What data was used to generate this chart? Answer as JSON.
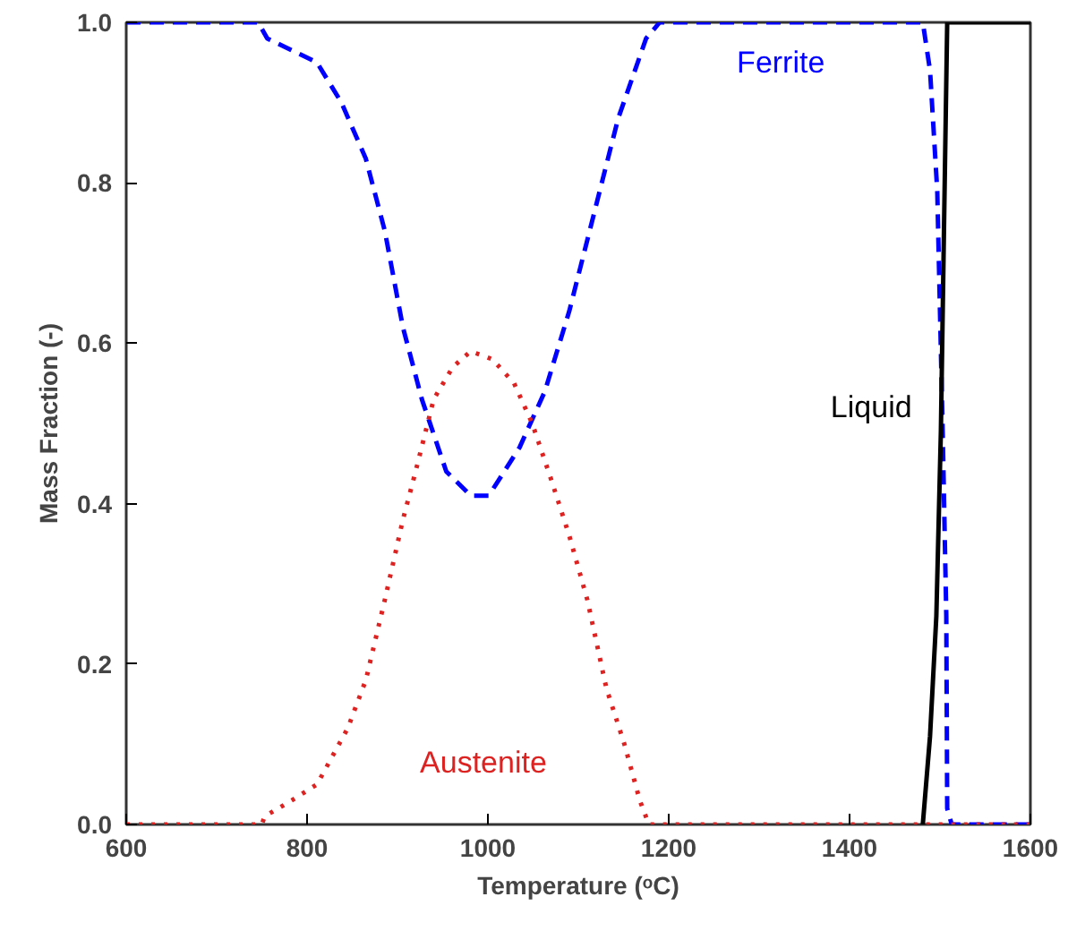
{
  "chart_data": {
    "type": "line",
    "xlabel": "Temperature (ᵒC)",
    "ylabel": "Mass Fraction (-)",
    "xlim": [
      600,
      1600
    ],
    "ylim": [
      0,
      1
    ],
    "xticks": [
      600,
      800,
      1000,
      1200,
      1400,
      1600
    ],
    "yticks": [
      {
        "value": 0,
        "label": "0.0"
      },
      {
        "value": 0.2,
        "label": "0.2"
      },
      {
        "value": 0.4,
        "label": "0.4"
      },
      {
        "value": 0.6,
        "label": "0.6"
      },
      {
        "value": 0.8,
        "label": "0.8"
      },
      {
        "value": 1,
        "label": "1.0"
      }
    ],
    "grid": false,
    "series": [
      {
        "name": "Ferrite",
        "color": "#0000ff",
        "line_style": "dashed",
        "x": [
          600,
          746,
          756,
          811,
          838,
          865,
          886,
          906,
          927,
          954,
          981,
          1001,
          1035,
          1063,
          1090,
          1117,
          1144,
          1175,
          1190,
          1481,
          1489,
          1497,
          1503,
          1507,
          1508,
          1513,
          1600
        ],
        "values": [
          1.0,
          1.0,
          0.98,
          0.95,
          0.9,
          0.83,
          0.74,
          0.62,
          0.53,
          0.44,
          0.41,
          0.41,
          0.47,
          0.54,
          0.64,
          0.76,
          0.88,
          0.98,
          1.0,
          1.0,
          0.94,
          0.79,
          0.49,
          0.26,
          0.02,
          0.0,
          0.0
        ]
      },
      {
        "name": "Austenite",
        "color": "#dd2222",
        "line_style": "dotted",
        "x": [
          600,
          750,
          753,
          783,
          811,
          845,
          865,
          886,
          906,
          920,
          940,
          961,
          981,
          1005,
          1029,
          1049,
          1070,
          1090,
          1110,
          1131,
          1151,
          1168,
          1178,
          1600
        ],
        "values": [
          0.0,
          0.0,
          0.01,
          0.03,
          0.05,
          0.12,
          0.18,
          0.28,
          0.38,
          0.44,
          0.53,
          0.57,
          0.59,
          0.58,
          0.55,
          0.5,
          0.43,
          0.36,
          0.28,
          0.17,
          0.1,
          0.03,
          0.0,
          0.0
        ]
      },
      {
        "name": "Liquid",
        "color": "#000000",
        "line_style": "solid",
        "x": [
          1481,
          1489,
          1496,
          1501,
          1504,
          1508,
          1600
        ],
        "values": [
          0.0,
          0.11,
          0.26,
          0.49,
          0.71,
          1.0,
          1.0
        ]
      }
    ]
  }
}
